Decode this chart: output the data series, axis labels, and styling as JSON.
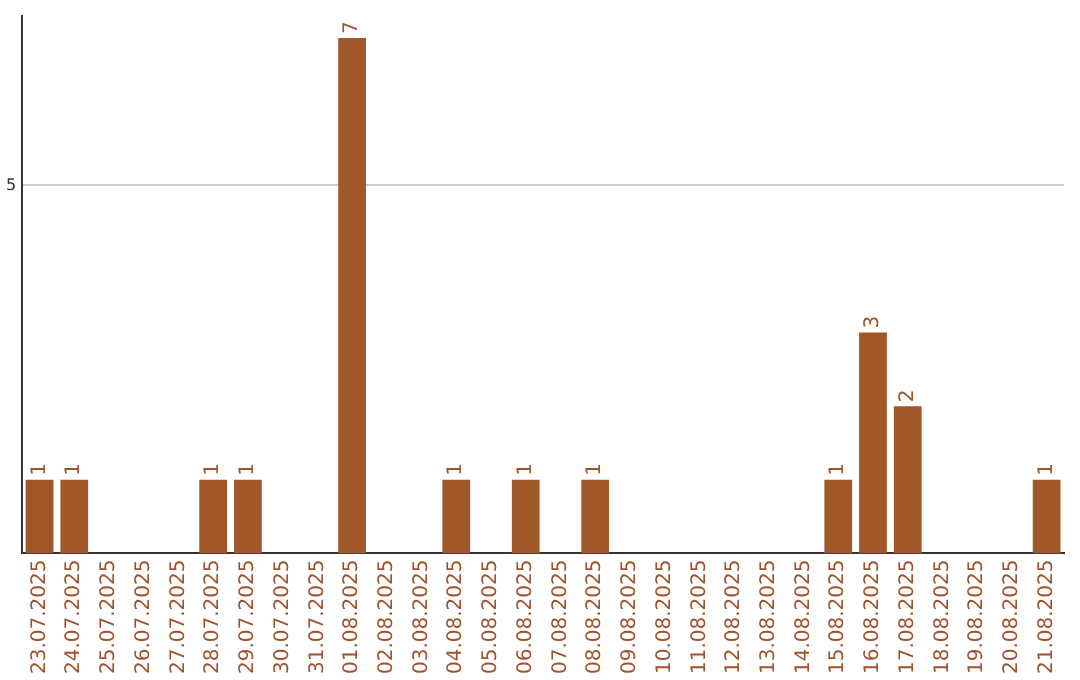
{
  "chart_data": {
    "type": "bar",
    "categories": [
      "23.07.2025",
      "24.07.2025",
      "25.07.2025",
      "26.07.2025",
      "27.07.2025",
      "28.07.2025",
      "29.07.2025",
      "30.07.2025",
      "31.07.2025",
      "01.08.2025",
      "02.08.2025",
      "03.08.2025",
      "04.08.2025",
      "05.08.2025",
      "06.08.2025",
      "07.08.2025",
      "08.08.2025",
      "09.08.2025",
      "10.08.2025",
      "11.08.2025",
      "12.08.2025",
      "13.08.2025",
      "14.08.2025",
      "15.08.2025",
      "16.08.2025",
      "17.08.2025",
      "18.08.2025",
      "19.08.2025",
      "20.08.2025",
      "21.08.2025"
    ],
    "values": [
      1,
      1,
      0,
      0,
      0,
      1,
      1,
      0,
      0,
      7,
      0,
      0,
      1,
      0,
      1,
      0,
      1,
      0,
      0,
      0,
      0,
      0,
      0,
      1,
      3,
      2,
      0,
      0,
      0,
      1
    ],
    "value_labels": [
      "1",
      "1",
      null,
      null,
      null,
      "1",
      "1",
      null,
      null,
      "7",
      null,
      null,
      "1",
      null,
      "1",
      null,
      "1",
      null,
      null,
      null,
      null,
      null,
      null,
      "1",
      "3",
      "2",
      null,
      null,
      null,
      "1"
    ],
    "color": "#a0582a",
    "ylim": [
      0,
      7.3
    ],
    "yticks": [
      5
    ],
    "grid": "y"
  }
}
